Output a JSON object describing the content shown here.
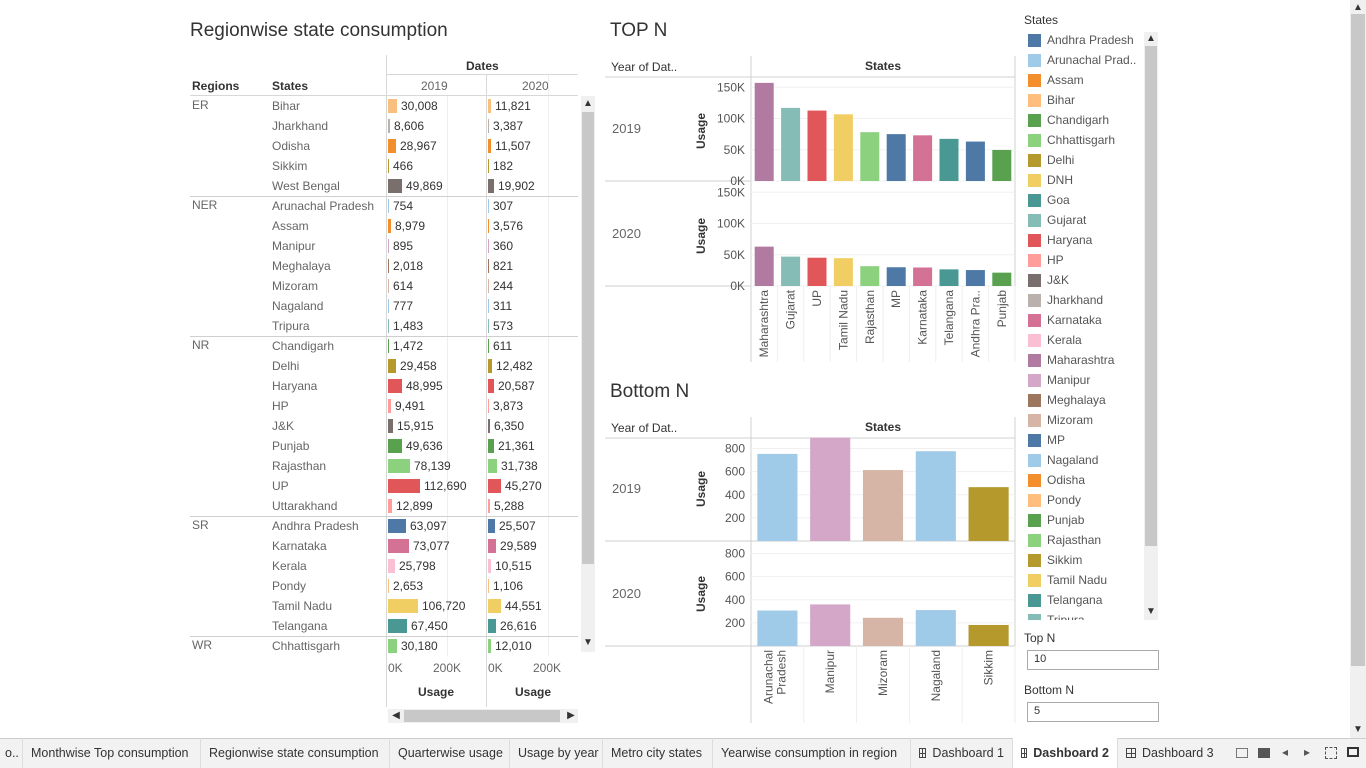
{
  "table_section": {
    "title": "Regionwise state consumption",
    "dates_header": "Dates",
    "col_regions": "Regions",
    "col_states": "States",
    "years": [
      "2019",
      "2020"
    ],
    "axis_ticks": [
      "0K",
      "200K"
    ],
    "axis_label": "Usage",
    "rows": [
      {
        "region": "ER",
        "state": "Bihar",
        "v2019": 30008,
        "t2019": "30,008",
        "v2020": 11821,
        "t2020": "11,821",
        "color": "#F9BF7E"
      },
      {
        "region": "",
        "state": "Jharkhand",
        "v2019": 8606,
        "t2019": "8,606",
        "v2020": 3387,
        "t2020": "3,387",
        "color": "#B8B1AC"
      },
      {
        "region": "",
        "state": "Odisha",
        "v2019": 28967,
        "t2019": "28,967",
        "v2020": 11507,
        "t2020": "11,507",
        "color": "#F28E2B"
      },
      {
        "region": "",
        "state": "Sikkim",
        "v2019": 466,
        "t2019": "466",
        "v2020": 182,
        "t2020": "182",
        "color": "#B6992D"
      },
      {
        "region": "",
        "state": "West Bengal",
        "v2019": 49869,
        "t2019": "49,869",
        "v2020": 19902,
        "t2020": "19,902",
        "color": "#79706E"
      },
      {
        "region": "NER",
        "state": "Arunachal Pradesh",
        "v2019": 754,
        "t2019": "754",
        "v2020": 307,
        "t2020": "307",
        "color": "#A0CBE8"
      },
      {
        "region": "",
        "state": "Assam",
        "v2019": 8979,
        "t2019": "8,979",
        "v2020": 3576,
        "t2020": "3,576",
        "color": "#F28E2B"
      },
      {
        "region": "",
        "state": "Manipur",
        "v2019": 895,
        "t2019": "895",
        "v2020": 360,
        "t2020": "360",
        "color": "#D4A6C8"
      },
      {
        "region": "",
        "state": "Meghalaya",
        "v2019": 2018,
        "t2019": "2,018",
        "v2020": 821,
        "t2020": "821",
        "color": "#9D7660"
      },
      {
        "region": "",
        "state": "Mizoram",
        "v2019": 614,
        "t2019": "614",
        "v2020": 244,
        "t2020": "244",
        "color": "#D7B5A6"
      },
      {
        "region": "",
        "state": "Nagaland",
        "v2019": 777,
        "t2019": "777",
        "v2020": 311,
        "t2020": "311",
        "color": "#A0CBE8"
      },
      {
        "region": "",
        "state": "Tripura",
        "v2019": 1483,
        "t2019": "1,483",
        "v2020": 573,
        "t2020": "573",
        "color": "#86BCB6"
      },
      {
        "region": "NR",
        "state": "Chandigarh",
        "v2019": 1472,
        "t2019": "1,472",
        "v2020": 611,
        "t2020": "611",
        "color": "#59A14F"
      },
      {
        "region": "",
        "state": "Delhi",
        "v2019": 29458,
        "t2019": "29,458",
        "v2020": 12482,
        "t2020": "12,482",
        "color": "#B6992D"
      },
      {
        "region": "",
        "state": "Haryana",
        "v2019": 48995,
        "t2019": "48,995",
        "v2020": 20587,
        "t2020": "20,587",
        "color": "#E15759"
      },
      {
        "region": "",
        "state": "HP",
        "v2019": 9491,
        "t2019": "9,491",
        "v2020": 3873,
        "t2020": "3,873",
        "color": "#FF9D9A"
      },
      {
        "region": "",
        "state": "J&K",
        "v2019": 15915,
        "t2019": "15,915",
        "v2020": 6350,
        "t2020": "6,350",
        "color": "#79706E"
      },
      {
        "region": "",
        "state": "Punjab",
        "v2019": 49636,
        "t2019": "49,636",
        "v2020": 21361,
        "t2020": "21,361",
        "color": "#59A14F"
      },
      {
        "region": "",
        "state": "Rajasthan",
        "v2019": 78139,
        "t2019": "78,139",
        "v2020": 31738,
        "t2020": "31,738",
        "color": "#8CD17D"
      },
      {
        "region": "",
        "state": "UP",
        "v2019": 112690,
        "t2019": "112,690",
        "v2020": 45270,
        "t2020": "45,270",
        "color": "#E15759"
      },
      {
        "region": "",
        "state": "Uttarakhand",
        "v2019": 12899,
        "t2019": "12,899",
        "v2020": 5288,
        "t2020": "5,288",
        "color": "#FF9D9A"
      },
      {
        "region": "SR",
        "state": "Andhra Pradesh",
        "v2019": 63097,
        "t2019": "63,097",
        "v2020": 25507,
        "t2020": "25,507",
        "color": "#4E79A7"
      },
      {
        "region": "",
        "state": "Karnataka",
        "v2019": 73077,
        "t2019": "73,077",
        "v2020": 29589,
        "t2020": "29,589",
        "color": "#D37295"
      },
      {
        "region": "",
        "state": "Kerala",
        "v2019": 25798,
        "t2019": "25,798",
        "v2020": 10515,
        "t2020": "10,515",
        "color": "#FABFD2"
      },
      {
        "region": "",
        "state": "Pondy",
        "v2019": 2653,
        "t2019": "2,653",
        "v2020": 1106,
        "t2020": "1,106",
        "color": "#F9BF7E"
      },
      {
        "region": "",
        "state": "Tamil Nadu",
        "v2019": 106720,
        "t2019": "106,720",
        "v2020": 44551,
        "t2020": "44,551",
        "color": "#F1CE63"
      },
      {
        "region": "",
        "state": "Telangana",
        "v2019": 67450,
        "t2019": "67,450",
        "v2020": 26616,
        "t2020": "26,616",
        "color": "#499894"
      },
      {
        "region": "WR",
        "state": "Chhattisgarh",
        "v2019": 30180,
        "t2019": "30,180",
        "v2020": 12010,
        "t2020": "12,010",
        "color": "#8CD17D"
      }
    ]
  },
  "topn": {
    "title": "TOP N",
    "row_header": "Year of Dat..",
    "col_header": "States",
    "axis_label": "Usage",
    "y_ticks": [
      "0K",
      "50K",
      "100K",
      "150K"
    ],
    "years": [
      "2019",
      "2020"
    ]
  },
  "bottomn": {
    "title": "Bottom N",
    "row_header": "Year of Dat..",
    "col_header": "States",
    "axis_label": "Usage",
    "y_ticks": [
      "200",
      "400",
      "600",
      "800"
    ],
    "years": [
      "2019",
      "2020"
    ]
  },
  "chart_data": [
    {
      "type": "bar",
      "title": "TOP N",
      "ylabel": "Usage",
      "ylim": [
        0,
        160000
      ],
      "categories": [
        "Maharashtra",
        "Gujarat",
        "UP",
        "Tamil Nadu",
        "Rajasthan",
        "MP",
        "Karnataka",
        "Telangana",
        "Andhra Pra..",
        "Punjab"
      ],
      "colors": [
        "#B07AA1",
        "#86BCB6",
        "#E15759",
        "#F1CE63",
        "#8CD17D",
        "#4E79A7",
        "#D37295",
        "#499894",
        "#4E79A7",
        "#59A14F"
      ],
      "series": [
        {
          "name": "2019",
          "values": [
            157000,
            117000,
            112690,
            106720,
            78139,
            75000,
            73077,
            67450,
            63097,
            49636
          ]
        },
        {
          "name": "2020",
          "values": [
            63000,
            47000,
            45270,
            44551,
            31738,
            30000,
            29589,
            26616,
            25507,
            21361
          ]
        }
      ]
    },
    {
      "type": "bar",
      "title": "Bottom N",
      "ylabel": "Usage",
      "ylim": [
        0,
        900
      ],
      "categories": [
        "Arunachal Pradesh",
        "Manipur",
        "Mizoram",
        "Nagaland",
        "Sikkim"
      ],
      "colors": [
        "#A0CBE8",
        "#D4A6C8",
        "#D7B5A6",
        "#A0CBE8",
        "#B6992D"
      ],
      "series": [
        {
          "name": "2019",
          "values": [
            754,
            895,
            614,
            777,
            466
          ]
        },
        {
          "name": "2020",
          "values": [
            307,
            360,
            244,
            311,
            182
          ]
        }
      ]
    }
  ],
  "legend": {
    "title": "States",
    "items": [
      {
        "label": "Andhra Pradesh",
        "color": "#4E79A7"
      },
      {
        "label": "Arunachal Prad..",
        "color": "#A0CBE8"
      },
      {
        "label": "Assam",
        "color": "#F28E2B"
      },
      {
        "label": "Bihar",
        "color": "#FFBE7D"
      },
      {
        "label": "Chandigarh",
        "color": "#59A14F"
      },
      {
        "label": "Chhattisgarh",
        "color": "#8CD17D"
      },
      {
        "label": "Delhi",
        "color": "#B6992D"
      },
      {
        "label": "DNH",
        "color": "#F1CE63"
      },
      {
        "label": "Goa",
        "color": "#499894"
      },
      {
        "label": "Gujarat",
        "color": "#86BCB6"
      },
      {
        "label": "Haryana",
        "color": "#E15759"
      },
      {
        "label": "HP",
        "color": "#FF9D9A"
      },
      {
        "label": "J&K",
        "color": "#79706E"
      },
      {
        "label": "Jharkhand",
        "color": "#BAB0AC"
      },
      {
        "label": "Karnataka",
        "color": "#D37295"
      },
      {
        "label": "Kerala",
        "color": "#FABFD2"
      },
      {
        "label": "Maharashtra",
        "color": "#B07AA1"
      },
      {
        "label": "Manipur",
        "color": "#D4A6C8"
      },
      {
        "label": "Meghalaya",
        "color": "#9D7660"
      },
      {
        "label": "Mizoram",
        "color": "#D7B5A6"
      },
      {
        "label": "MP",
        "color": "#4E79A7"
      },
      {
        "label": "Nagaland",
        "color": "#A0CBE8"
      },
      {
        "label": "Odisha",
        "color": "#F28E2B"
      },
      {
        "label": "Pondy",
        "color": "#FFBE7D"
      },
      {
        "label": "Punjab",
        "color": "#59A14F"
      },
      {
        "label": "Rajasthan",
        "color": "#8CD17D"
      },
      {
        "label": "Sikkim",
        "color": "#B6992D"
      },
      {
        "label": "Tamil Nadu",
        "color": "#F1CE63"
      },
      {
        "label": "Telangana",
        "color": "#499894"
      },
      {
        "label": "Tripura",
        "color": "#86BCB6"
      }
    ]
  },
  "params": {
    "topn_label": "Top N",
    "topn_value": "10",
    "bottomn_label": "Bottom N",
    "bottomn_value": "5"
  },
  "tabs": [
    {
      "label": "o..",
      "icon": "",
      "active": false
    },
    {
      "label": "Monthwise Top consumption",
      "icon": "",
      "active": false
    },
    {
      "label": "Regionwise state consumption",
      "icon": "",
      "active": false
    },
    {
      "label": "Quarterwise usage",
      "icon": "",
      "active": false
    },
    {
      "label": "Usage by year",
      "icon": "",
      "active": false
    },
    {
      "label": "Metro city states",
      "icon": "",
      "active": false
    },
    {
      "label": "Yearwise consumption in region",
      "icon": "",
      "active": false
    },
    {
      "label": "Dashboard 1",
      "icon": "dashboard-icon",
      "active": false
    },
    {
      "label": "Dashboard 2",
      "icon": "dashboard-icon",
      "active": true
    },
    {
      "label": "Dashboard 3",
      "icon": "dashboard-icon",
      "active": false
    }
  ]
}
